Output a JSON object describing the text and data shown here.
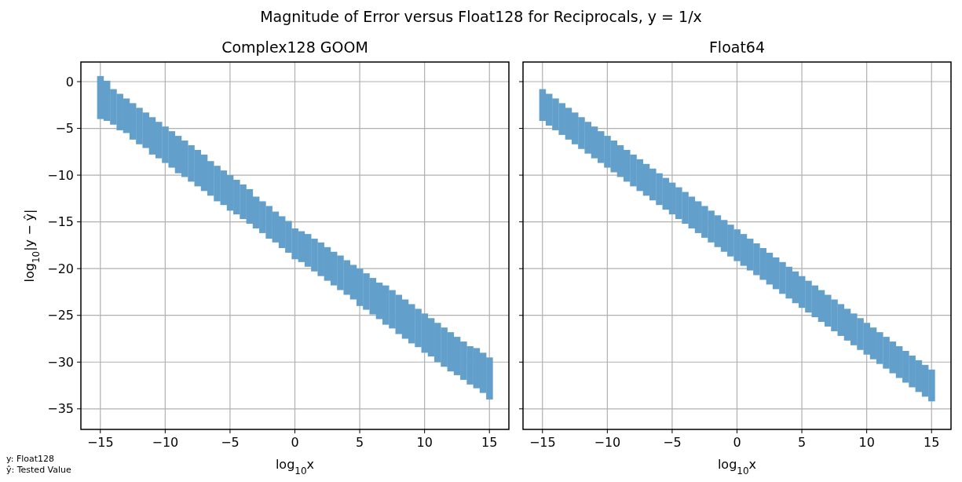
{
  "chart_data": [
    {
      "type": "bar",
      "title": "Complex128 GOOM",
      "xlabel": "log$_{10}$x",
      "ylabel": "log$_{10}$|y − ŷ|",
      "xlim": [
        -16.5,
        16.5
      ],
      "xticks": [
        -15,
        -10,
        -5,
        0,
        5,
        10,
        15
      ],
      "ylim": [
        -37.2,
        2.1
      ],
      "yticks": [
        0,
        -5,
        -10,
        -15,
        -20,
        -25,
        -30,
        -35
      ],
      "grid": true,
      "annotations": [
        "Magnitude of Error versus Float128 for Reciprocals, y = 1/x",
        "y: Float128",
        "ŷ: Tested Value"
      ],
      "x": [
        -15,
        -14.5,
        -14,
        -13.5,
        -13,
        -12.5,
        -12,
        -11.5,
        -11,
        -10.5,
        -10,
        -9.5,
        -9,
        -8.5,
        -8,
        -7.5,
        -7,
        -6.5,
        -6,
        -5.5,
        -5,
        -4.5,
        -4,
        -3.5,
        -3,
        -2.5,
        -2,
        -1.5,
        -1,
        -0.5,
        0,
        0.5,
        1,
        1.5,
        2,
        2.5,
        3,
        3.5,
        4,
        4.5,
        5,
        5.5,
        6,
        6.5,
        7,
        7.5,
        8,
        8.5,
        9,
        9.5,
        10,
        10.5,
        11,
        11.5,
        12,
        12.5,
        13,
        13.5,
        14,
        14.5,
        15
      ],
      "series": [
        {
          "color": "#62a0cb",
          "base": [
            -4,
            -4.2,
            -4.6,
            -5.2,
            -5.5,
            -6.2,
            -6.7,
            -7.1,
            -7.8,
            -8.2,
            -8.7,
            -9.2,
            -9.8,
            -10.2,
            -10.7,
            -11.2,
            -11.7,
            -12.2,
            -12.8,
            -13.2,
            -13.8,
            -14.2,
            -14.7,
            -15.2,
            -15.7,
            -16.2,
            -16.8,
            -17.2,
            -17.8,
            -18.3,
            -19,
            -19.3,
            -19.8,
            -20.3,
            -20.8,
            -21.3,
            -21.8,
            -22.3,
            -22.8,
            -23.3,
            -24,
            -24.4,
            -24.9,
            -25.4,
            -26,
            -26.4,
            -27,
            -27.5,
            -28,
            -28.4,
            -29,
            -29.4,
            -30,
            -30.5,
            -31,
            -31.4,
            -31.9,
            -32.4,
            -32.8,
            -33.3,
            -34
          ],
          "values": [
            4.6,
            4.3,
            3.8,
            3.9,
            3.7,
            3.9,
            3.9,
            3.8,
            4.0,
            3.9,
            3.9,
            3.9,
            4.0,
            3.9,
            3.9,
            3.9,
            3.9,
            3.7,
            3.8,
            3.7,
            3.8,
            3.7,
            3.7,
            3.7,
            3.4,
            3.4,
            3.5,
            3.3,
            3.4,
            3.4,
            3.3,
            3.3,
            3.5,
            3.5,
            3.6,
            3.6,
            3.6,
            3.7,
            3.7,
            3.7,
            4.0,
            3.9,
            3.9,
            3.9,
            4.2,
            4.1,
            4.2,
            4.2,
            4.2,
            4.1,
            4.2,
            4.1,
            4.2,
            4.2,
            4.2,
            4.1,
            4.1,
            4.1,
            4.3,
            4.3,
            4.5
          ]
        }
      ]
    },
    {
      "type": "bar",
      "title": "Float64",
      "xlabel": "log$_{10}$x",
      "xlim": [
        -16.5,
        16.5
      ],
      "xticks": [
        -15,
        -10,
        -5,
        0,
        5,
        10,
        15
      ],
      "ylim": [
        -37.2,
        2.1
      ],
      "yticks": [
        0,
        -5,
        -10,
        -15,
        -20,
        -25,
        -30,
        -35
      ],
      "grid": true,
      "tick_labels": "x",
      "x": [
        -15,
        -14.5,
        -14,
        -13.5,
        -13,
        -12.5,
        -12,
        -11.5,
        -11,
        -10.5,
        -10,
        -9.5,
        -9,
        -8.5,
        -8,
        -7.5,
        -7,
        -6.5,
        -6,
        -5.5,
        -5,
        -4.5,
        -4,
        -3.5,
        -3,
        -2.5,
        -2,
        -1.5,
        -1,
        -0.5,
        0,
        0.5,
        1,
        1.5,
        2,
        2.5,
        3,
        3.5,
        4,
        4.5,
        5,
        5.5,
        6,
        6.5,
        7,
        7.5,
        8,
        8.5,
        9,
        9.5,
        10,
        10.5,
        11,
        11.5,
        12,
        12.5,
        13,
        13.5,
        14,
        14.5,
        15
      ],
      "series": [
        {
          "color": "#62a0cb",
          "base": [
            -4.2,
            -4.7,
            -5.2,
            -5.7,
            -6.2,
            -6.7,
            -7.2,
            -7.7,
            -8.2,
            -8.7,
            -9.2,
            -9.7,
            -10.2,
            -10.7,
            -11.2,
            -11.7,
            -12.2,
            -12.7,
            -13.2,
            -13.7,
            -14.2,
            -14.7,
            -15.2,
            -15.7,
            -16.2,
            -16.7,
            -17.2,
            -17.7,
            -18.2,
            -18.7,
            -19.2,
            -19.7,
            -20.2,
            -20.7,
            -21.2,
            -21.7,
            -22.2,
            -22.7,
            -23.2,
            -23.7,
            -24.2,
            -24.7,
            -25.2,
            -25.7,
            -26.2,
            -26.7,
            -27.2,
            -27.7,
            -28.2,
            -28.7,
            -29.2,
            -29.7,
            -30.2,
            -30.7,
            -31.2,
            -31.7,
            -32.2,
            -32.7,
            -33.2,
            -33.7,
            -34.2
          ],
          "values": [
            3.4,
            3.4,
            3.4,
            3.4,
            3.4,
            3.4,
            3.4,
            3.4,
            3.4,
            3.4,
            3.4,
            3.4,
            3.4,
            3.4,
            3.4,
            3.4,
            3.4,
            3.4,
            3.4,
            3.4,
            3.4,
            3.4,
            3.4,
            3.4,
            3.4,
            3.4,
            3.4,
            3.4,
            3.4,
            3.4,
            3.4,
            3.4,
            3.4,
            3.4,
            3.4,
            3.4,
            3.4,
            3.4,
            3.4,
            3.4,
            3.4,
            3.4,
            3.4,
            3.4,
            3.4,
            3.4,
            3.4,
            3.4,
            3.4,
            3.4,
            3.4,
            3.4,
            3.4,
            3.4,
            3.4,
            3.4,
            3.4,
            3.4,
            3.4,
            3.4,
            3.4
          ]
        }
      ]
    }
  ]
}
